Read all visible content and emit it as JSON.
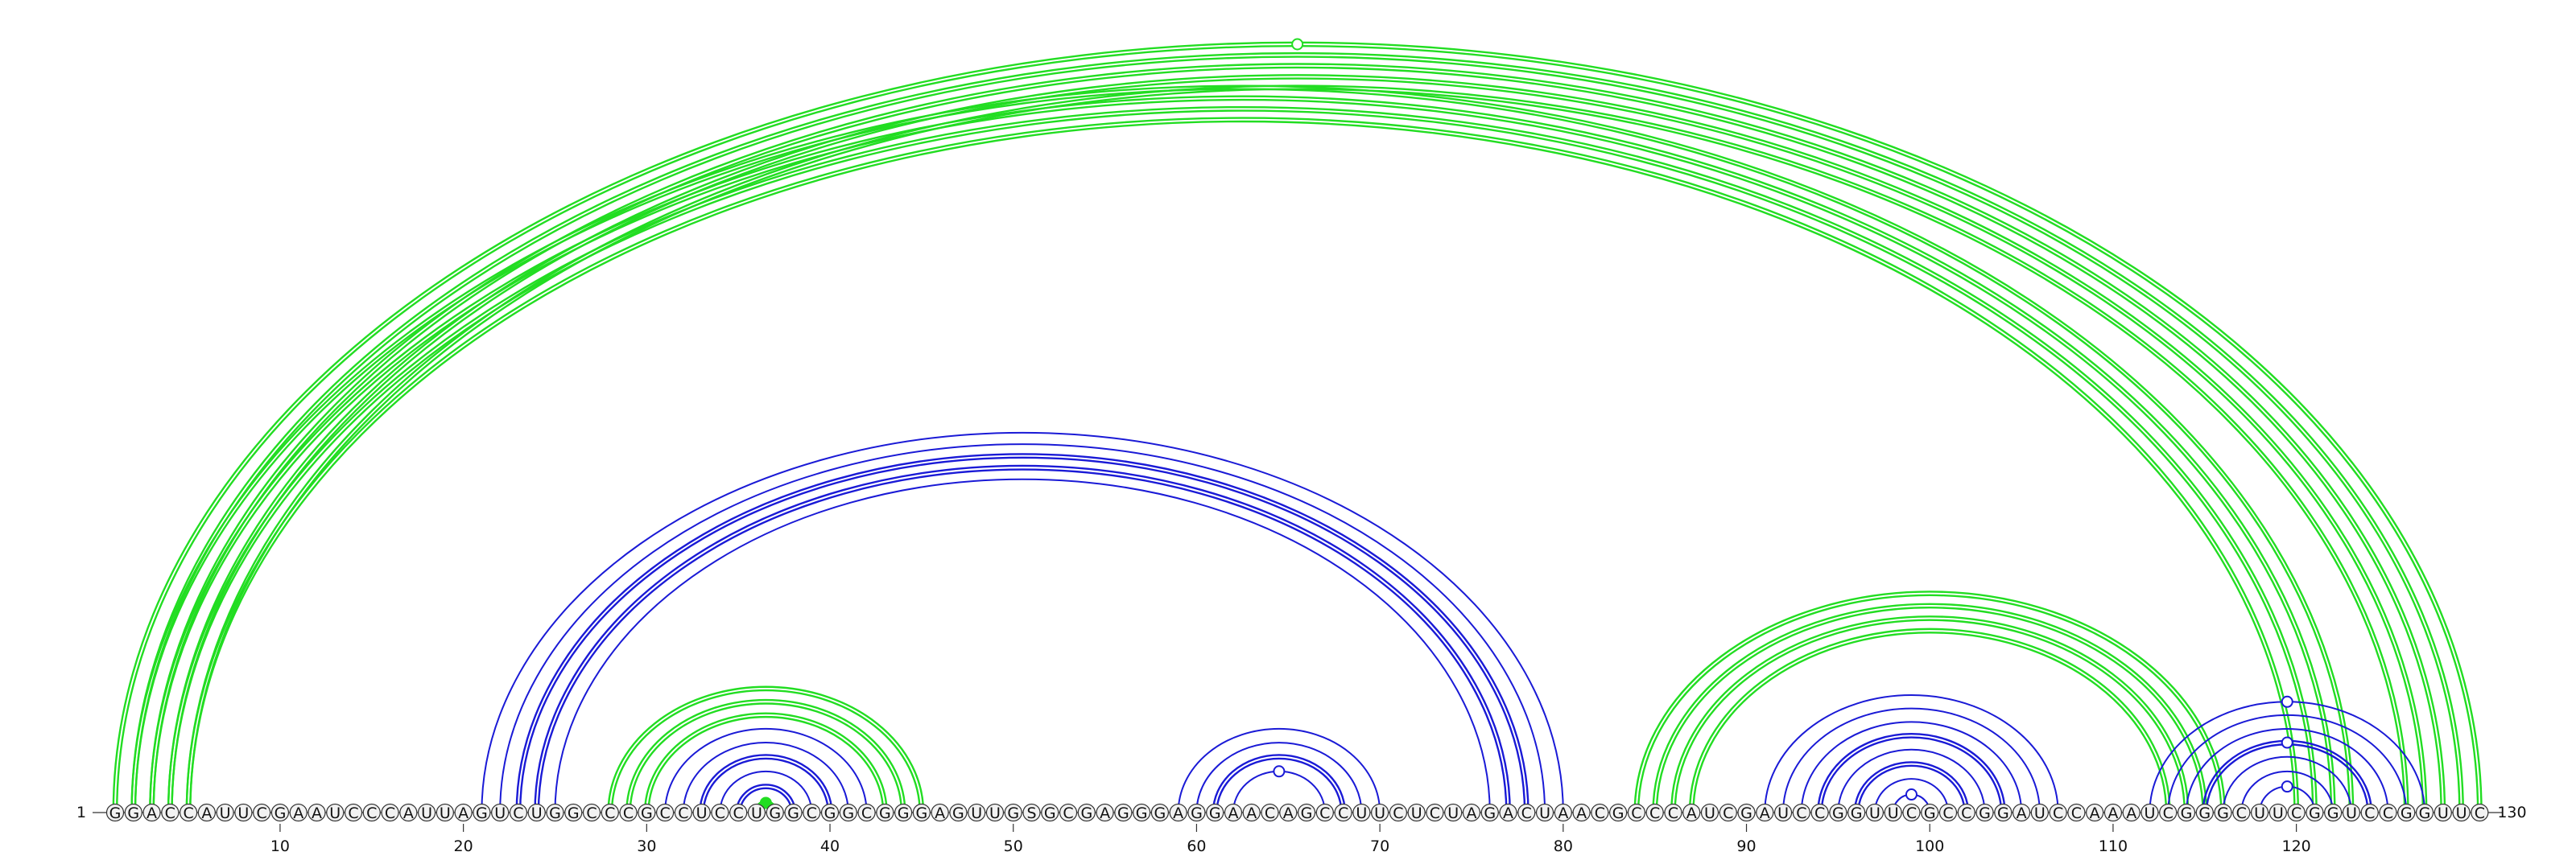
{
  "sequence": "GGACCAUUCGAAUCCCAUUAGUCUGGCCCGCCUCCUGGCGGCGGGAGUUGSGCGAGGGAGGAACAGCCUUCUCUAGACUAACGCCCAUCGAUCCGGUUCGCCGGAUCCAAAUCGGGCUUCGGUCCGGUUC",
  "start_label": "1",
  "end_label": "130",
  "ticks": [
    10,
    20,
    30,
    40,
    50,
    60,
    70,
    80,
    90,
    100,
    110,
    120
  ],
  "colors": {
    "green": "#22dd22",
    "blue": "#1a1ad6"
  },
  "arcs": [
    {
      "i": 1,
      "j": 130,
      "color": "green",
      "double": true
    },
    {
      "i": 2,
      "j": 129,
      "color": "green",
      "double": true
    },
    {
      "i": 3,
      "j": 128,
      "color": "green",
      "double": true
    },
    {
      "i": 4,
      "j": 127,
      "color": "green",
      "double": true
    },
    {
      "i": 5,
      "j": 126,
      "color": "green",
      "double": true
    },
    {
      "i": 2,
      "j": 123,
      "color": "green",
      "double": true
    },
    {
      "i": 3,
      "j": 122,
      "color": "green",
      "double": true
    },
    {
      "i": 4,
      "j": 121,
      "color": "green",
      "double": true
    },
    {
      "i": 5,
      "j": 120,
      "color": "green",
      "double": true
    },
    {
      "i": 21,
      "j": 80,
      "color": "blue",
      "double": false
    },
    {
      "i": 22,
      "j": 79,
      "color": "blue",
      "double": false
    },
    {
      "i": 23,
      "j": 78,
      "color": "blue",
      "double": true
    },
    {
      "i": 24,
      "j": 77,
      "color": "blue",
      "double": true
    },
    {
      "i": 25,
      "j": 76,
      "color": "blue",
      "double": false
    },
    {
      "i": 28,
      "j": 45,
      "color": "green",
      "double": true
    },
    {
      "i": 29,
      "j": 44,
      "color": "green",
      "double": true
    },
    {
      "i": 30,
      "j": 43,
      "color": "green",
      "double": true
    },
    {
      "i": 31,
      "j": 42,
      "color": "blue",
      "double": false
    },
    {
      "i": 32,
      "j": 41,
      "color": "blue",
      "double": false
    },
    {
      "i": 33,
      "j": 40,
      "color": "blue",
      "double": true
    },
    {
      "i": 34,
      "j": 39,
      "color": "blue",
      "double": false
    },
    {
      "i": 35,
      "j": 38,
      "color": "blue",
      "double": true
    },
    {
      "i": 36,
      "j": 37,
      "color": "green",
      "double": true
    },
    {
      "i": 59,
      "j": 70,
      "color": "blue",
      "double": false
    },
    {
      "i": 60,
      "j": 69,
      "color": "blue",
      "double": false
    },
    {
      "i": 61,
      "j": 68,
      "color": "blue",
      "double": true
    },
    {
      "i": 62,
      "j": 67,
      "color": "blue",
      "double": false
    },
    {
      "i": 84,
      "j": 116,
      "color": "green",
      "double": true
    },
    {
      "i": 85,
      "j": 115,
      "color": "green",
      "double": true
    },
    {
      "i": 86,
      "j": 114,
      "color": "green",
      "double": true
    },
    {
      "i": 87,
      "j": 113,
      "color": "green",
      "double": true
    },
    {
      "i": 91,
      "j": 107,
      "color": "blue",
      "double": false
    },
    {
      "i": 92,
      "j": 106,
      "color": "blue",
      "double": false
    },
    {
      "i": 93,
      "j": 105,
      "color": "blue",
      "double": false
    },
    {
      "i": 94,
      "j": 104,
      "color": "blue",
      "double": true
    },
    {
      "i": 95,
      "j": 103,
      "color": "blue",
      "double": false
    },
    {
      "i": 96,
      "j": 102,
      "color": "blue",
      "double": true
    },
    {
      "i": 97,
      "j": 101,
      "color": "blue",
      "double": false
    },
    {
      "i": 98,
      "j": 100,
      "color": "blue",
      "double": false
    },
    {
      "i": 112,
      "j": 127,
      "color": "blue",
      "double": false
    },
    {
      "i": 113,
      "j": 126,
      "color": "blue",
      "double": false
    },
    {
      "i": 114,
      "j": 125,
      "color": "blue",
      "double": false
    },
    {
      "i": 115,
      "j": 124,
      "color": "blue",
      "double": true
    },
    {
      "i": 116,
      "j": 123,
      "color": "blue",
      "double": false
    },
    {
      "i": 117,
      "j": 122,
      "color": "blue",
      "double": false
    },
    {
      "i": 118,
      "j": 121,
      "color": "blue",
      "double": false
    }
  ],
  "markers": [
    {
      "between": [
        1,
        130
      ],
      "color": "green",
      "filled": false
    },
    {
      "between": [
        36,
        37
      ],
      "color": "green",
      "filled": true
    },
    {
      "between": [
        62,
        67
      ],
      "color": "blue",
      "filled": false
    },
    {
      "between": [
        98,
        100
      ],
      "color": "blue",
      "filled": false
    },
    {
      "between": [
        112,
        127
      ],
      "color": "blue",
      "filled": false
    },
    {
      "between": [
        115,
        124
      ],
      "color": "blue",
      "filled": false
    },
    {
      "between": [
        118,
        121
      ],
      "color": "blue",
      "filled": false
    }
  ]
}
